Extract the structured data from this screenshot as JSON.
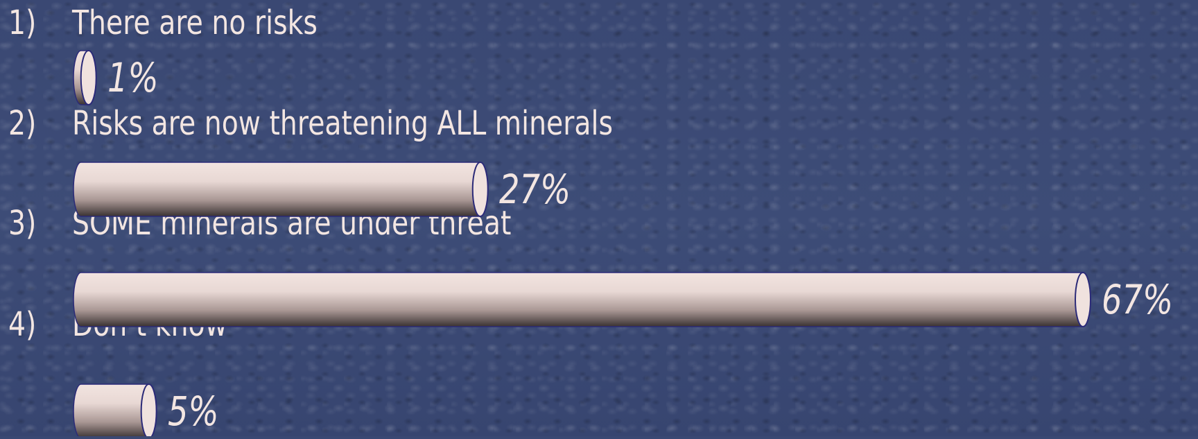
{
  "chart_data": {
    "type": "bar",
    "orientation": "horizontal",
    "categories": [
      "There are no risks",
      "Risks are now threatening ALL minerals",
      "SOME minerals are under threat",
      "Don’t know"
    ],
    "numbers": [
      "1)",
      "2)",
      "3)",
      "4)"
    ],
    "values": [
      1,
      27,
      67,
      5
    ],
    "value_labels": [
      "1%",
      "27%",
      "67%",
      "5%"
    ],
    "xlim": [
      0,
      67
    ],
    "grid": false,
    "legend": "none"
  },
  "colors": {
    "background": "#3b4a74",
    "text": "#f3e6e2",
    "bar_light": "#f0e2de",
    "bar_dark": "#3a3232",
    "bar_outline": "#2b2a78"
  }
}
